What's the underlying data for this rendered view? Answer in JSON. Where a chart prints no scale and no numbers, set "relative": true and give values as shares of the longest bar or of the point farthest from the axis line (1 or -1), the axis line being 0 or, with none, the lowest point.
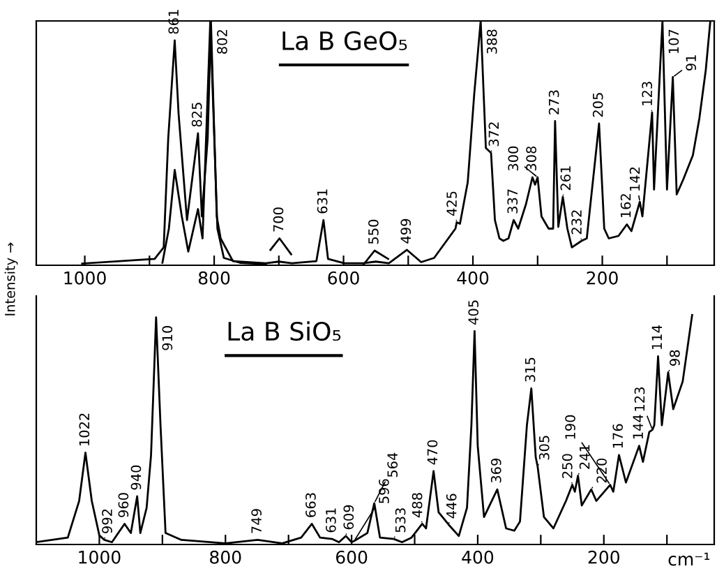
{
  "chart_data": [
    {
      "type": "line",
      "relative": true,
      "ylabel": "Intensity →",
      "tick_labels": "x",
      "xlim": [
        1075,
        27
      ],
      "xticks": [
        1000,
        {
          "value": 900,
          "label": null
        },
        800,
        {
          "value": 700,
          "label": null
        },
        600,
        {
          "value": 500,
          "label": null
        },
        400,
        {
          "value": 300,
          "label": null
        },
        200,
        {
          "value": 100,
          "label": null
        }
      ],
      "series": [
        {
          "color": "#000000",
          "x": [
            1004,
            892,
            878,
            871,
            861,
            855,
            842,
            825,
            819,
            810,
            805,
            796,
            790,
            771,
            720,
            700,
            680,
            642,
            631,
            624,
            599,
            570,
            550,
            530,
            502,
            480,
            460,
            427,
            425,
            420,
            408,
            398,
            388,
            380,
            372,
            366,
            359,
            353,
            345,
            337,
            330,
            318,
            308,
            304,
            300,
            294,
            283,
            276,
            273,
            268,
            261,
            254,
            247,
            232,
            224,
            205,
            197,
            190,
            175,
            162,
            155,
            142,
            138,
            123,
            120,
            107,
            100,
            91,
            85,
            75,
            60,
            50,
            40,
            33
          ],
          "values": [
            0.007,
            0.026,
            0.073,
            0.52,
            0.92,
            0.62,
            0.185,
            0.54,
            0.2,
            0.52,
            1.0,
            0.2,
            0.11,
            0.017,
            0.008,
            0.015,
            0.008,
            0.017,
            0.185,
            0.026,
            0.008,
            0.008,
            0.015,
            0.008,
            0.063,
            0.013,
            0.03,
            0.15,
            0.176,
            0.17,
            0.34,
            0.7,
            1.0,
            0.48,
            0.46,
            0.185,
            0.11,
            0.1,
            0.11,
            0.185,
            0.15,
            0.25,
            0.36,
            0.33,
            0.36,
            0.2,
            0.15,
            0.15,
            0.59,
            0.157,
            0.28,
            0.15,
            0.073,
            0.1,
            0.11,
            0.58,
            0.15,
            0.11,
            0.12,
            0.167,
            0.14,
            0.26,
            0.2,
            0.625,
            0.31,
            1.0,
            0.31,
            0.77,
            0.29,
            0.35,
            0.45,
            0.6,
            0.8,
            1.0
          ]
        },
        {
          "color": "#000000",
          "x": [
            880,
            870,
            861,
            850,
            840,
            825,
            818,
            806,
            795,
            785,
            760,
            720
          ],
          "values": [
            0.01,
            0.15,
            0.39,
            0.2,
            0.056,
            0.23,
            0.11,
            1.0,
            0.15,
            0.03,
            0.01,
            0.005
          ]
        },
        {
          "color": "#000000",
          "x": [
            713,
            699,
            681
          ],
          "values": [
            0.063,
            0.11,
            0.045
          ]
        },
        {
          "color": "#000000",
          "x": [
            570,
            552,
            531
          ],
          "values": [
            0.0,
            0.06,
            0.026
          ]
        }
      ],
      "annotations": [
        "La B GeO₅",
        {
          "text": "861",
          "x": 861,
          "y": 0.92
        },
        {
          "text": "825",
          "x": 825,
          "y": 0.54
        },
        {
          "text": "802",
          "x": 805,
          "y": 1.0
        },
        {
          "text": "700",
          "x": 699,
          "y": 0.11
        },
        {
          "text": "631",
          "x": 631,
          "y": 0.185
        },
        {
          "text": "550",
          "x": 552,
          "y": 0.06
        },
        {
          "text": "499",
          "x": 502,
          "y": 0.063
        },
        {
          "text": "425",
          "x": 425,
          "y": 0.176
        },
        {
          "text": "388",
          "x": 388,
          "y": 1.0
        },
        {
          "text": "372",
          "x": 372,
          "y": 0.46
        },
        {
          "text": "337",
          "x": 337,
          "y": 0.185
        },
        {
          "text": "308",
          "x": 308,
          "y": 0.36
        },
        {
          "text": "300",
          "x": 300,
          "y": 0.36
        },
        {
          "text": "273",
          "x": 273,
          "y": 0.59
        },
        {
          "text": "261",
          "x": 261,
          "y": 0.28
        },
        {
          "text": "232",
          "x": 232,
          "y": 0.1
        },
        {
          "text": "205",
          "x": 205,
          "y": 0.58
        },
        {
          "text": "162",
          "x": 162,
          "y": 0.167
        },
        {
          "text": "142",
          "x": 142,
          "y": 0.26
        },
        {
          "text": "123",
          "x": 123,
          "y": 0.625
        },
        {
          "text": "107",
          "x": 107,
          "y": 1.0
        },
        {
          "text": "91",
          "x": 91,
          "y": 0.77
        }
      ]
    },
    {
      "type": "line",
      "relative": true,
      "xlabel": "cm⁻¹",
      "tick_labels": "x",
      "xlim": [
        1100,
        25
      ],
      "xticks": [
        1000,
        {
          "value": 900,
          "label": null
        },
        800,
        {
          "value": 700,
          "label": null
        },
        600,
        {
          "value": 500,
          "label": null
        },
        400,
        {
          "value": 300,
          "label": null
        },
        200,
        {
          "value": 100,
          "label": null
        }
      ],
      "series": [
        {
          "color": "#000000",
          "x": [
            1100,
            1050,
            1032,
            1022,
            1012,
            1000,
            992,
            980,
            960,
            950,
            940,
            935,
            925,
            918,
            910,
            903,
            895,
            870,
            800,
            749,
            710,
            680,
            663,
            650,
            631,
            620,
            609,
            600,
            596,
            575,
            564,
            555,
            533,
            520,
            505,
            488,
            482,
            470,
            462,
            446,
            430,
            417,
            410,
            405,
            400,
            390,
            369,
            355,
            342,
            333,
            322,
            315,
            308,
            305,
            295,
            280,
            260,
            250,
            246,
            241,
            235,
            220,
            212,
            190,
            185,
            176,
            165,
            144,
            138,
            128,
            123,
            120,
            114,
            108,
            98,
            90,
            75,
            60
          ],
          "values": [
            0.01,
            0.03,
            0.19,
            0.4,
            0.19,
            0.04,
            0.02,
            0.01,
            0.09,
            0.05,
            0.21,
            0.05,
            0.16,
            0.39,
            0.99,
            0.52,
            0.05,
            0.02,
            0.005,
            0.02,
            0.005,
            0.03,
            0.09,
            0.03,
            0.024,
            0.01,
            0.037,
            0.01,
            0.015,
            0.05,
            0.18,
            0.03,
            0.024,
            0.01,
            0.03,
            0.09,
            0.07,
            0.32,
            0.14,
            0.086,
            0.037,
            0.16,
            0.52,
            0.93,
            0.43,
            0.12,
            0.24,
            0.07,
            0.06,
            0.1,
            0.52,
            0.68,
            0.38,
            0.34,
            0.12,
            0.07,
            0.19,
            0.26,
            0.23,
            0.3,
            0.17,
            0.24,
            0.19,
            0.26,
            0.23,
            0.39,
            0.27,
            0.43,
            0.36,
            0.49,
            0.5,
            0.52,
            0.82,
            0.52,
            0.75,
            0.59,
            0.71,
            1.0
          ]
        }
      ],
      "annotations": [
        "La B SiO₅",
        {
          "text": "1022",
          "x": 1022,
          "y": 0.4
        },
        {
          "text": "992",
          "x": 992,
          "y": 0.02
        },
        {
          "text": "960",
          "x": 960,
          "y": 0.09
        },
        {
          "text": "940",
          "x": 940,
          "y": 0.21
        },
        {
          "text": "910",
          "x": 910,
          "y": 0.99
        },
        {
          "text": "749",
          "x": 749,
          "y": 0.02
        },
        {
          "text": "663",
          "x": 663,
          "y": 0.09
        },
        {
          "text": "631",
          "x": 631,
          "y": 0.024
        },
        {
          "text": "609",
          "x": 609,
          "y": 0.037
        },
        {
          "text": "596",
          "x": 596,
          "y": 0.015
        },
        {
          "text": "564",
          "x": 564,
          "y": 0.18
        },
        {
          "text": "533",
          "x": 533,
          "y": 0.024
        },
        {
          "text": "488",
          "x": 488,
          "y": 0.09
        },
        {
          "text": "470",
          "x": 470,
          "y": 0.32
        },
        {
          "text": "446",
          "x": 446,
          "y": 0.086
        },
        {
          "text": "405",
          "x": 405,
          "y": 0.93
        },
        {
          "text": "369",
          "x": 369,
          "y": 0.24
        },
        {
          "text": "315",
          "x": 315,
          "y": 0.68
        },
        {
          "text": "305",
          "x": 305,
          "y": 0.34
        },
        {
          "text": "250",
          "x": 250,
          "y": 0.26
        },
        {
          "text": "241",
          "x": 241,
          "y": 0.3
        },
        {
          "text": "220",
          "x": 220,
          "y": 0.24
        },
        {
          "text": "190",
          "x": 190,
          "y": 0.26
        },
        {
          "text": "176",
          "x": 176,
          "y": 0.39
        },
        {
          "text": "144",
          "x": 144,
          "y": 0.43
        },
        {
          "text": "123",
          "x": 123,
          "y": 0.5
        },
        {
          "text": "114",
          "x": 114,
          "y": 0.82
        },
        {
          "text": "98",
          "x": 98,
          "y": 0.75
        }
      ]
    }
  ]
}
